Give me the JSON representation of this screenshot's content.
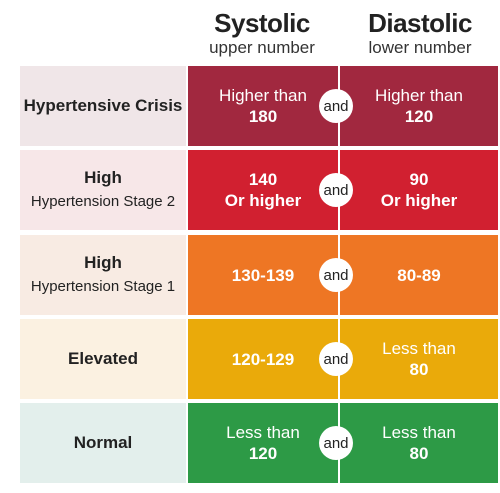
{
  "header": {
    "systolic": {
      "title": "Systolic",
      "subtitle": "upper number"
    },
    "diastolic": {
      "title": "Diastolic",
      "subtitle": "lower number"
    }
  },
  "chart_data": {
    "type": "table",
    "columns": [
      "Systolic",
      "Diastolic"
    ],
    "connector": "and",
    "rows": [
      {
        "category": [
          "Hypertensive Crisis"
        ],
        "systolic": [
          "Higher than",
          "180"
        ],
        "diastolic": [
          "Higher than",
          "120"
        ],
        "colors": {
          "label_bg": "#f0e6e8",
          "cell": "#a1283f"
        },
        "bold_values": false
      },
      {
        "category": [
          "High",
          "Hypertension Stage 2"
        ],
        "systolic": [
          "140",
          "Or higher"
        ],
        "diastolic": [
          "90",
          "Or higher"
        ],
        "colors": {
          "label_bg": "#f7e7e8",
          "cell": "#d12030"
        },
        "bold_values": true
      },
      {
        "category": [
          "High",
          "Hypertension Stage 1"
        ],
        "systolic": [
          "130-139"
        ],
        "diastolic": [
          "80-89"
        ],
        "colors": {
          "label_bg": "#f8ebe3",
          "cell": "#ee7624"
        },
        "bold_values": false
      },
      {
        "category": [
          "Elevated"
        ],
        "systolic": [
          "120-129"
        ],
        "diastolic": [
          "Less than",
          "80"
        ],
        "colors": {
          "label_bg": "#fbf1e1",
          "cell": "#eaaa0a"
        },
        "bold_values": false
      },
      {
        "category": [
          "Normal"
        ],
        "systolic": [
          "Less than",
          "120"
        ],
        "diastolic": [
          "Less than",
          "80"
        ],
        "colors": {
          "label_bg": "#e3efec",
          "cell": "#2d9a46"
        },
        "bold_values": false
      }
    ]
  }
}
